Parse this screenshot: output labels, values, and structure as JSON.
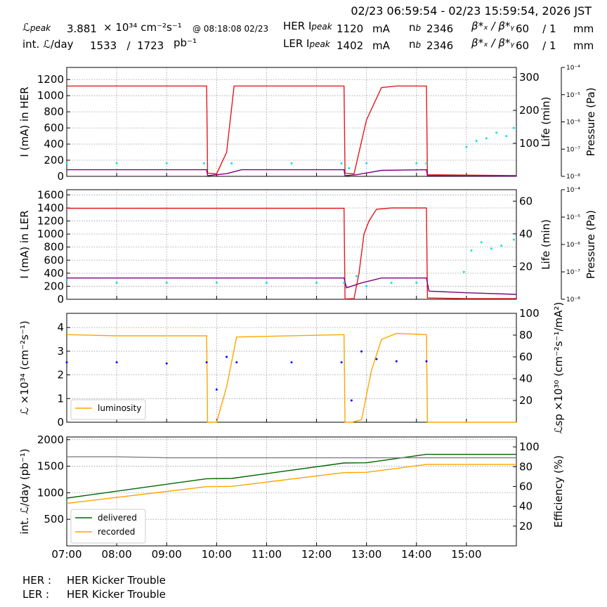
{
  "header": {
    "time_range": "02/23 06:59:54 - 02/23 15:59:54, 2026 JST",
    "lpeak_label": "ℒ",
    "lpeak_sub": "peak",
    "lpeak_value": "3.881",
    "lpeak_unit": "× 10³⁴ cm⁻²s⁻¹",
    "lpeak_time": "@ 08:18:08 02/23",
    "intl_label": "int. ℒ/day",
    "intl_values": "1533   /  1723",
    "intl_unit": "pb⁻¹",
    "her_label": "HER I",
    "her_sub": "peak",
    "her_value": "1120",
    "ler_label": "LER I",
    "ler_sub": "peak",
    "ler_value": "1402",
    "current_unit": "mA",
    "nb_label": "n",
    "nb_sub": "b",
    "her_nb": "2346",
    "ler_nb": "2346",
    "beta_label": "β*ₓ / β*ᵧ",
    "her_beta": "60    / 1",
    "ler_beta": "60    / 1",
    "beta_unit": "mm"
  },
  "footer": {
    "her_label": "HER :",
    "her_status": "HER Kicker Trouble",
    "ler_label": "LER :",
    "ler_status": "HER Kicker Trouble"
  },
  "colors": {
    "current": "#e41a1c",
    "lifetime": "#800080",
    "pressure": "#00e5e5",
    "luminosity": "#ffa500",
    "specific": "#0000ff",
    "delivered": "#006400",
    "recorded": "#ffa500",
    "efficiency": "#808080",
    "grid": "#9a9a9a"
  },
  "chart_data": [
    {
      "type": "line",
      "title": "",
      "ylabel": "I (mA) in HER",
      "ylim": [
        0,
        1350
      ],
      "yticks": [
        "0",
        "200",
        "400",
        "600",
        "800",
        "1000",
        "1200"
      ],
      "y2label": "Life (min)",
      "y2lim": [
        0,
        330
      ],
      "y2ticks": [
        "100",
        "200",
        "300"
      ],
      "y3label": "Pressure (Pa)",
      "y3scale": "log",
      "y3lim": [
        1e-08,
        0.0001
      ],
      "y3ticks": [
        "10⁻⁸",
        "10⁻⁷",
        "10⁻⁶",
        "10⁻⁵",
        "10⁻⁴"
      ],
      "grid": true,
      "series": [
        {
          "role": "current",
          "x": [
            7.0,
            9.8,
            9.82,
            10.0,
            10.2,
            10.35,
            12.55,
            12.57,
            12.75,
            13.0,
            13.3,
            13.6,
            14.2,
            14.22,
            16.0
          ],
          "values": [
            1120,
            1120,
            40,
            30,
            300,
            1120,
            1120,
            40,
            30,
            700,
            1100,
            1120,
            1120,
            20,
            10
          ]
        },
        {
          "role": "lifetime",
          "x": [
            7.0,
            9.8,
            9.82,
            10.2,
            10.5,
            12.55,
            12.57,
            12.8,
            13.3,
            14.2,
            14.22,
            16.0
          ],
          "values": [
            20,
            20,
            2,
            8,
            20,
            20,
            2,
            5,
            18,
            20,
            2,
            1
          ]
        },
        {
          "role": "pressure",
          "x": [
            7.0,
            8.0,
            9.0,
            9.75,
            10.3,
            11.5,
            12.5,
            12.65,
            13.0,
            14.0,
            14.2
          ],
          "values": [
            3e-08,
            3e-08,
            3e-08,
            3e-08,
            3e-08,
            3e-08,
            3e-08,
            2e-08,
            3e-08,
            3e-08,
            3e-08
          ]
        },
        {
          "role": "pressure",
          "x": [
            15.0,
            15.2,
            15.4,
            15.6,
            15.8,
            15.95
          ],
          "values": [
            1.2e-07,
            2e-07,
            2.5e-07,
            4e-07,
            3e-07,
            6e-07
          ]
        }
      ]
    },
    {
      "type": "line",
      "title": "",
      "ylabel": "I (mA) in LER",
      "ylim": [
        0,
        1680
      ],
      "yticks": [
        "0",
        "200",
        "400",
        "600",
        "800",
        "1000",
        "1200",
        "1400",
        "1600"
      ],
      "y2label": "Life (min)",
      "y2lim": [
        0,
        67
      ],
      "y2ticks": [
        "20",
        "40",
        "60"
      ],
      "y3label": "Pressure (Pa)",
      "y3scale": "log",
      "y3lim": [
        1e-08,
        0.0001
      ],
      "y3ticks": [
        "10⁻⁸",
        "10⁻⁷",
        "10⁻⁶",
        "10⁻⁵",
        "10⁻⁴"
      ],
      "grid": true,
      "series": [
        {
          "role": "current",
          "x": [
            7.0,
            12.55,
            12.57,
            12.75,
            12.85,
            12.95,
            13.05,
            13.2,
            13.5,
            14.2,
            14.22,
            15.0,
            16.0
          ],
          "values": [
            1395,
            1395,
            5,
            10,
            400,
            1000,
            1200,
            1380,
            1400,
            1400,
            20,
            10,
            10
          ]
        },
        {
          "role": "lifetime",
          "x": [
            7.0,
            12.55,
            12.6,
            12.9,
            13.3,
            14.2,
            14.25,
            15.0,
            16.0
          ],
          "values": [
            13,
            13,
            7,
            10,
            13,
            13,
            5,
            4,
            3
          ]
        },
        {
          "role": "pressure",
          "x": [
            7.0,
            8.0,
            9.0,
            10.0,
            11.0,
            12.0,
            12.55,
            12.8,
            13.0,
            13.5,
            14.0
          ],
          "values": [
            5e-08,
            4e-08,
            4e-08,
            4e-08,
            4e-08,
            4e-08,
            4e-08,
            7e-08,
            3e-08,
            4e-08,
            4e-08
          ]
        },
        {
          "role": "pressure",
          "x": [
            14.95,
            15.1,
            15.3,
            15.5,
            15.7,
            15.95
          ],
          "values": [
            1e-07,
            6e-07,
            1.2e-06,
            7e-07,
            9e-07,
            1.5e-06
          ]
        }
      ]
    },
    {
      "type": "line",
      "title": "",
      "ylabel": "ℒ ×10³⁴ (cm⁻²s⁻¹)",
      "ylim": [
        0,
        4.6
      ],
      "yticks": [
        "0",
        "1",
        "2",
        "3",
        "4"
      ],
      "y2label": "ℒsp ×10³⁰ (cm⁻²s⁻¹/mA²)",
      "y2lim": [
        0,
        100
      ],
      "y2ticks": [
        "20",
        "40",
        "60",
        "80",
        "100"
      ],
      "grid": true,
      "legend": "lower-left",
      "series": [
        {
          "name": "luminosity",
          "role": "luminosity",
          "x": [
            7.0,
            8.0,
            9.0,
            9.8,
            9.82,
            10.0,
            10.2,
            10.4,
            12.55,
            12.57,
            12.7,
            12.9,
            13.1,
            13.3,
            13.6,
            14.2,
            14.22,
            16.0
          ],
          "values": [
            3.7,
            3.65,
            3.65,
            3.65,
            0,
            0,
            1.5,
            3.6,
            3.7,
            0,
            0,
            0.1,
            2.2,
            3.5,
            3.75,
            3.7,
            0,
            0
          ]
        },
        {
          "role": "specific",
          "x": [
            7.0,
            8.0,
            9.0,
            9.8,
            10.0,
            10.2,
            10.4,
            11.5,
            12.5,
            12.7,
            12.9,
            13.2,
            13.6,
            14.2
          ],
          "values": [
            55,
            55,
            54,
            55,
            30,
            60,
            55,
            55,
            55,
            20,
            65,
            58,
            56,
            56
          ]
        }
      ]
    },
    {
      "type": "line",
      "title": "",
      "ylabel": "int. ℒ/day (pb⁻¹)",
      "ylim": [
        0,
        2050
      ],
      "yticks": [
        "500",
        "1000",
        "1500",
        "2000"
      ],
      "y2label": "Efficiency (%)",
      "y2lim": [
        0,
        110
      ],
      "y2ticks": [
        "20",
        "40",
        "60",
        "80",
        "100"
      ],
      "xlabel": "",
      "xlim": [
        7.0,
        16.0
      ],
      "xticks": [
        "07:00",
        "08:00",
        "09:00",
        "10:00",
        "11:00",
        "12:00",
        "13:00",
        "14:00",
        "15:00"
      ],
      "grid": true,
      "legend": "lower-left",
      "series": [
        {
          "name": "delivered",
          "role": "delivered",
          "x": [
            7.0,
            9.8,
            10.3,
            12.55,
            13.0,
            14.2,
            16.0
          ],
          "values": [
            900,
            1265,
            1270,
            1560,
            1565,
            1723,
            1723
          ]
        },
        {
          "name": "recorded",
          "role": "recorded",
          "x": [
            7.0,
            9.8,
            10.3,
            12.55,
            13.0,
            14.2,
            16.0
          ],
          "values": [
            800,
            1115,
            1120,
            1380,
            1385,
            1533,
            1533
          ]
        },
        {
          "role": "efficiency",
          "x": [
            7.0,
            8.0,
            9.0,
            10.0,
            12.0,
            14.0,
            16.0
          ],
          "values": [
            90,
            90,
            89,
            89,
            89,
            89,
            89
          ]
        }
      ]
    }
  ]
}
